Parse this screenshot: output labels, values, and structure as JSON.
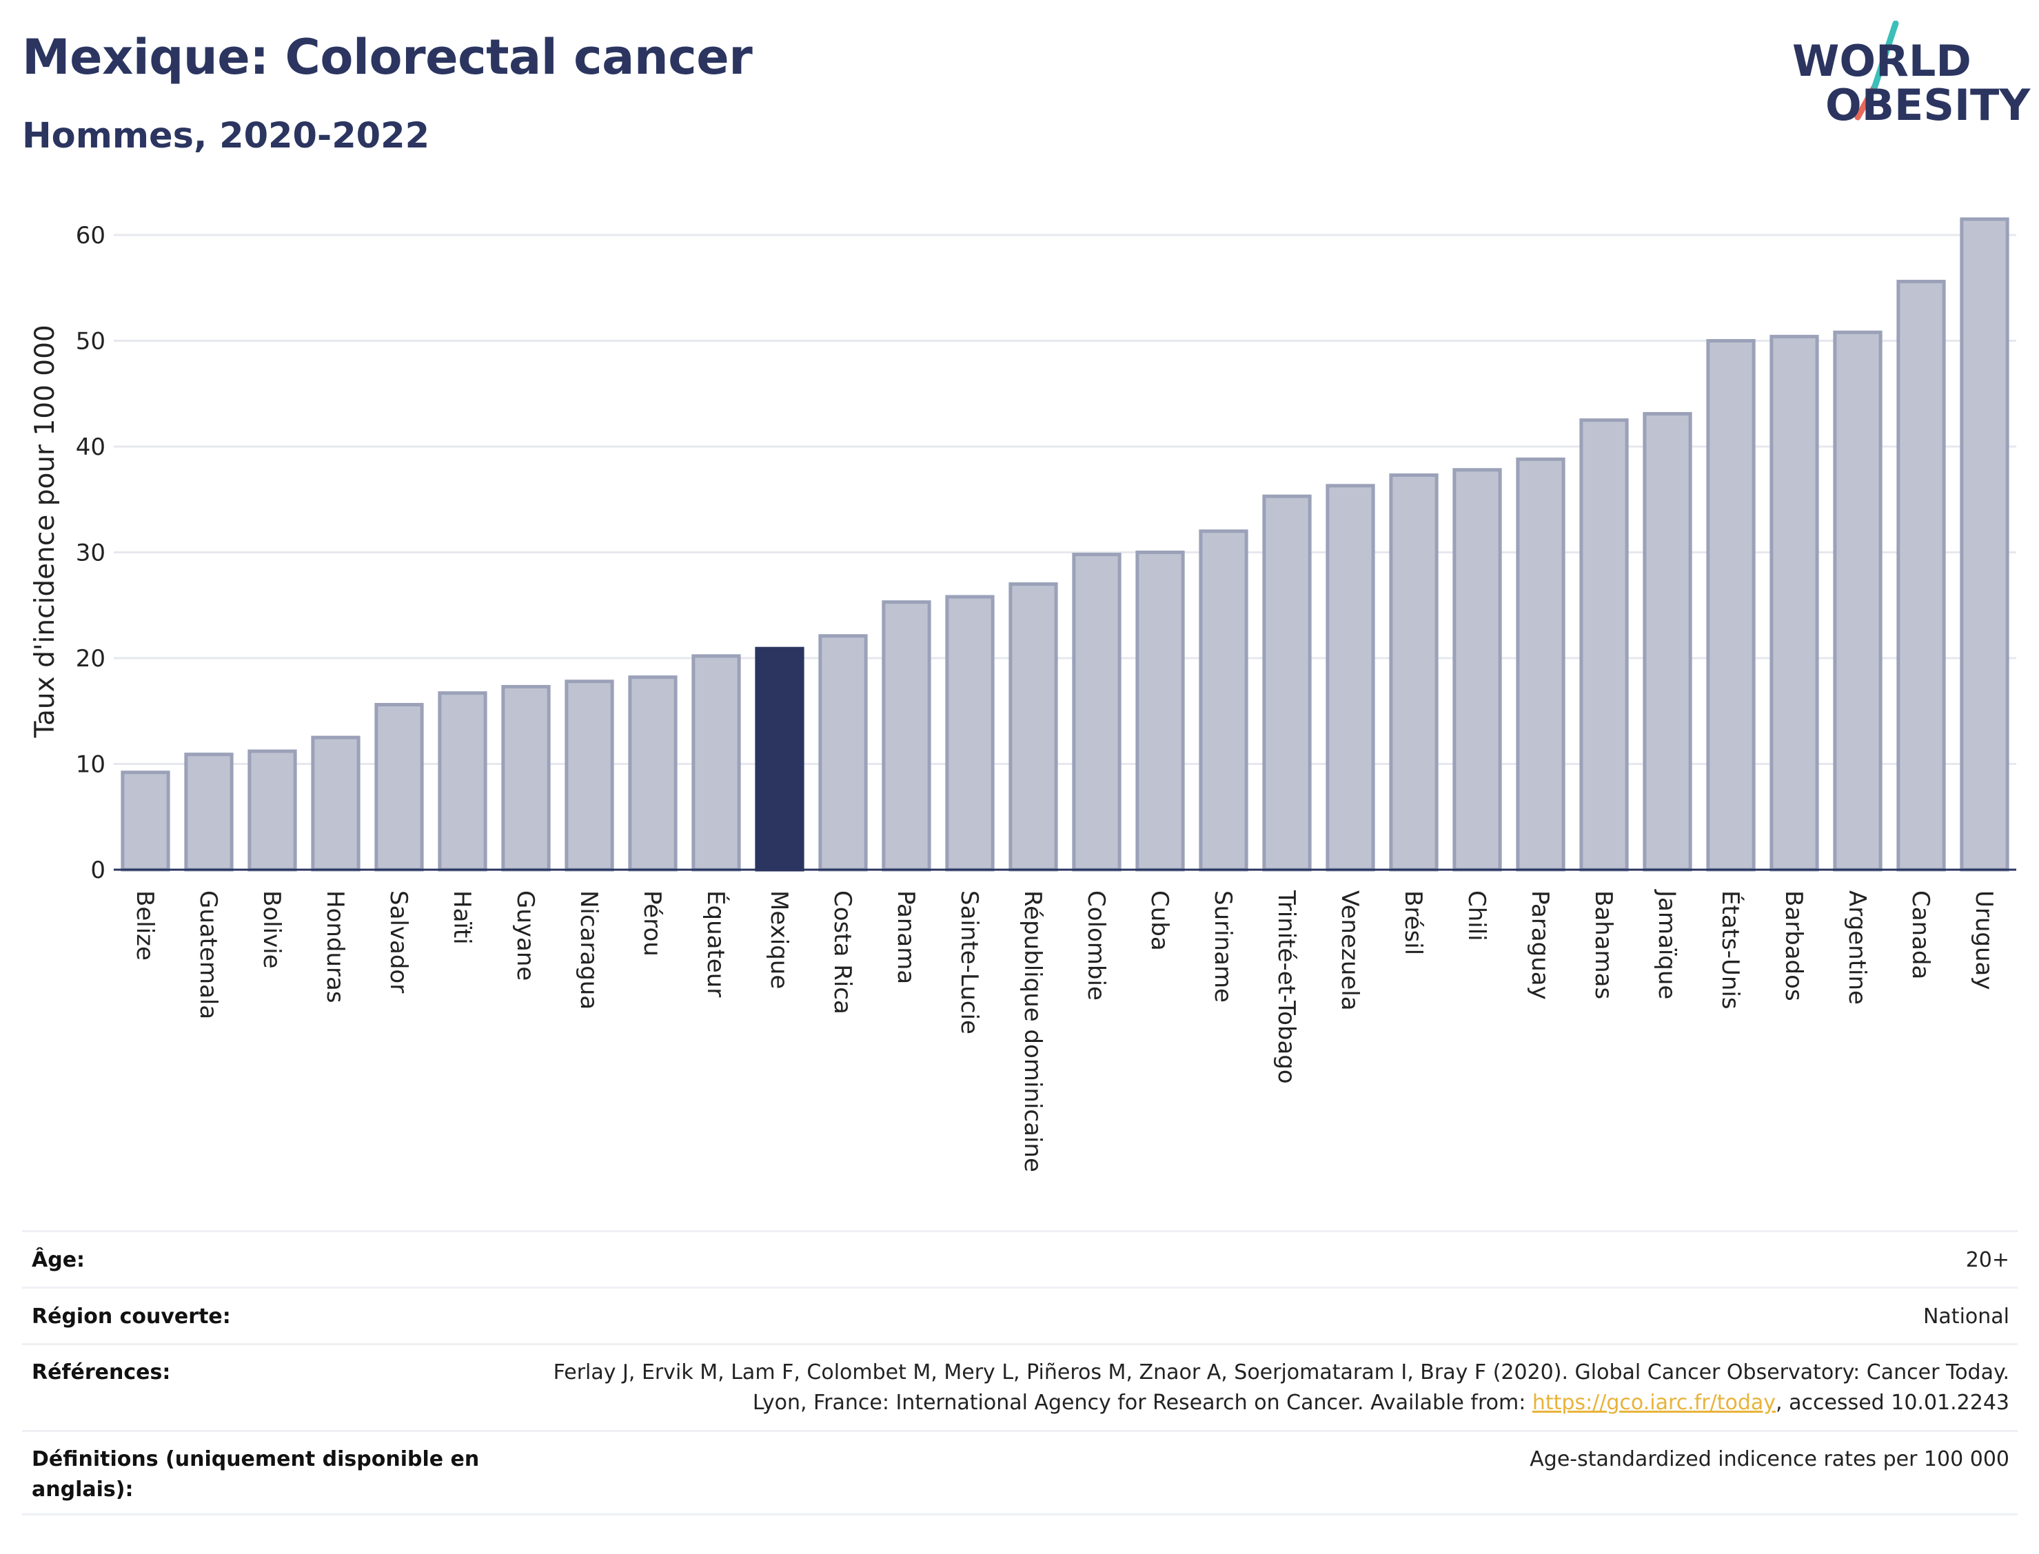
{
  "header": {
    "title": "Mexique: Colorectal cancer",
    "subtitle": "Hommes, 2020-2022"
  },
  "logo": {
    "line1": "WORLD",
    "line2": "OBESITY",
    "text_color": "#2b3560",
    "slash_top_color": "#3bbfb8",
    "slash_bottom_color": "#e8685a"
  },
  "colors": {
    "bar_default": "#bfc3d1",
    "bar_stroke": "#9aa1b8",
    "bar_highlight": "#2b3560",
    "grid": "#e6e8ee",
    "axis": "#2b3560"
  },
  "chart_data": {
    "type": "bar",
    "title": "Mexique: Colorectal cancer",
    "subtitle": "Hommes, 2020-2022",
    "ylabel": "Taux d'incidence pour 100 000",
    "xlabel": "",
    "ylim": [
      0,
      64
    ],
    "yticks": [
      0,
      10,
      20,
      30,
      40,
      50,
      60
    ],
    "grid": true,
    "highlight": "Mexique",
    "categories": [
      "Belize",
      "Guatemala",
      "Bolivie",
      "Honduras",
      "Salvador",
      "Haïti",
      "Guyane",
      "Nicaragua",
      "Pérou",
      "Équateur",
      "Mexique",
      "Costa Rica",
      "Panama",
      "Sainte-Lucie",
      "République dominicaine",
      "Colombie",
      "Cuba",
      "Suriname",
      "Trinité-et-Tobago",
      "Venezuela",
      "Brésil",
      "Chili",
      "Paraguay",
      "Bahamas",
      "Jamaïque",
      "États-Unis",
      "Barbados",
      "Argentine",
      "Canada",
      "Uruguay"
    ],
    "values": [
      9.2,
      10.9,
      11.2,
      12.5,
      15.6,
      16.7,
      17.3,
      17.8,
      18.2,
      20.2,
      20.9,
      22.1,
      25.3,
      25.8,
      27.0,
      29.8,
      30.0,
      32.0,
      35.3,
      36.3,
      37.3,
      37.8,
      38.8,
      42.5,
      43.1,
      50.0,
      50.4,
      50.8,
      55.6,
      61.5
    ]
  },
  "info": {
    "age_label": "Âge:",
    "age_value": "20+",
    "region_label": "Région couverte:",
    "region_value": "National",
    "refs_label": "Références:",
    "refs_text": "Ferlay J, Ervik M, Lam F, Colombet M, Mery L, Piñeros M, Znaor A, Soerjomataram I, Bray F (2020). Global Cancer Observatory: Cancer Today. Lyon, France: International Agency for Research on Cancer. Available from: ",
    "refs_link": "https://gco.iarc.fr/today",
    "refs_suffix": ", accessed 10.01.2243",
    "defs_label": "Définitions (uniquement disponible en anglais):",
    "defs_value": "Age-standardized indicence rates per 100 000"
  }
}
